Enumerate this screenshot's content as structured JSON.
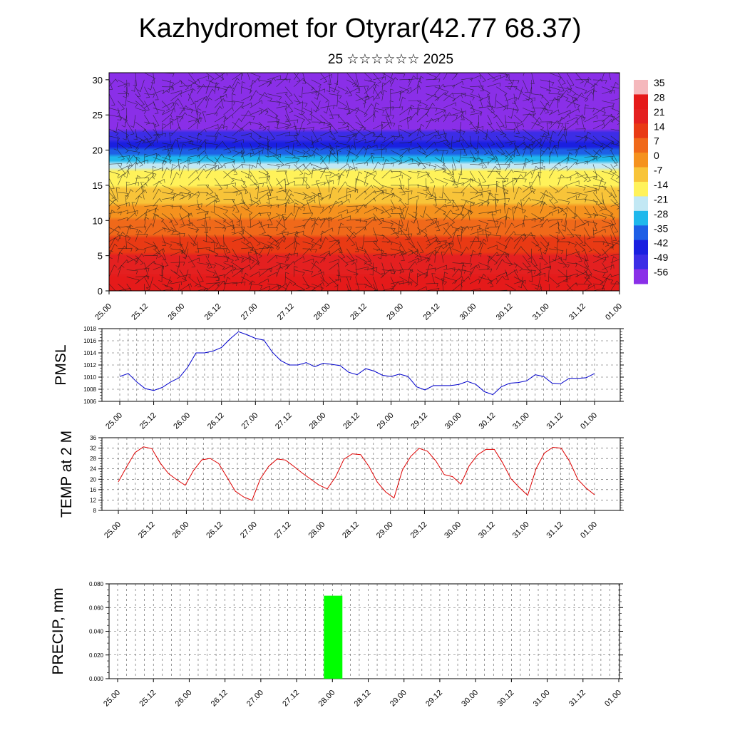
{
  "title": "Kazhydromet for Otyrar(42.77 68.37)",
  "subtitle": "25 ☆☆☆☆☆☆ 2025",
  "chart_data": [
    {
      "type": "heatmap",
      "name": "cross-section",
      "title": "",
      "xlabel": "",
      "ylabel": "",
      "x_tick_labels": [
        "25.00",
        "25.12",
        "26.00",
        "26.12",
        "27.00",
        "27.12",
        "28.00",
        "28.12",
        "29.00",
        "29.12",
        "30.00",
        "30.12",
        "31.00",
        "31.12",
        "01.00"
      ],
      "y_ticks": [
        0,
        5,
        10,
        15,
        20,
        25,
        30
      ],
      "ylim": [
        0,
        31
      ],
      "colorbar_labels": [
        "35",
        "28",
        "21",
        "14",
        "7",
        "0",
        "-7",
        "-14",
        "-21",
        "-28",
        "-35",
        "-42",
        "-49",
        "-56"
      ],
      "colorbar_levels": [
        35,
        28,
        21,
        14,
        7,
        0,
        -7,
        -14,
        -21,
        -28,
        -35,
        -42,
        -49,
        -56
      ],
      "colorbar_colors": [
        "#f5b8bc",
        "#e51a1a",
        "#e42020",
        "#e93a14",
        "#f0691a",
        "#f5921e",
        "#f8c439",
        "#fff25a",
        "#c2e8f4",
        "#1fb8ec",
        "#1e5fe6",
        "#1a1fe0",
        "#3c2de6",
        "#8a2fe8"
      ],
      "temperature_profile": [
        {
          "h": 0,
          "t": 32
        },
        {
          "h": 5,
          "t": 22
        },
        {
          "h": 10,
          "t": 7
        },
        {
          "h": 15,
          "t": -8
        },
        {
          "h": 17,
          "t": -14
        },
        {
          "h": 20,
          "t": -35
        },
        {
          "h": 24,
          "t": -56
        },
        {
          "h": 28,
          "t": -50
        },
        {
          "h": 31,
          "t": -60
        }
      ],
      "wind_barbs": true
    },
    {
      "type": "line",
      "name": "pmsl",
      "title": "",
      "xlabel": "",
      "ylabel": "PMSL",
      "ylim": [
        1006,
        1018
      ],
      "y_ticks": [
        1006,
        1008,
        1010,
        1012,
        1014,
        1016,
        1018
      ],
      "x_tick_labels": [
        "25.00",
        "25.12",
        "26.00",
        "26.12",
        "27.00",
        "27.12",
        "28.00",
        "28.12",
        "29.00",
        "29.12",
        "30.00",
        "30.12",
        "31.00",
        "31.12",
        "01.00"
      ],
      "series": [
        {
          "color": "#0000cc",
          "values": [
            1010.1,
            1010.6,
            1009.2,
            1008.1,
            1007.8,
            1008.3,
            1009.2,
            1009.9,
            1011.6,
            1014.0,
            1014.0,
            1014.3,
            1014.9,
            1016.3,
            1017.5,
            1017.0,
            1016.4,
            1016.1,
            1014.1,
            1012.7,
            1012.0,
            1012.0,
            1012.4,
            1011.7,
            1012.3,
            1012.1,
            1011.9,
            1010.8,
            1010.4,
            1011.4,
            1011.0,
            1010.3,
            1010.1,
            1010.5,
            1010.1,
            1008.4,
            1007.9,
            1008.6,
            1008.6,
            1008.6,
            1008.8,
            1009.3,
            1008.8,
            1007.6,
            1007.1,
            1008.4,
            1009.0,
            1009.1,
            1009.4,
            1010.4,
            1010.1,
            1009.0,
            1008.9,
            1009.8,
            1009.8,
            1009.9,
            1010.6
          ]
        }
      ]
    },
    {
      "type": "line",
      "name": "temp",
      "title": "",
      "xlabel": "",
      "ylabel": "TEMP at 2 M",
      "ylim": [
        8,
        36
      ],
      "y_ticks": [
        8,
        12,
        16,
        20,
        24,
        28,
        32,
        36
      ],
      "x_tick_labels": [
        "25.00",
        "25.12",
        "26.00",
        "26.12",
        "27.00",
        "27.12",
        "28.00",
        "28.12",
        "29.00",
        "29.12",
        "30.00",
        "30.12",
        "31.00",
        "31.12",
        "01.00"
      ],
      "series": [
        {
          "color": "#dd0000",
          "values": [
            19.0,
            24.8,
            30.3,
            32.5,
            31.8,
            26.3,
            22.2,
            19.8,
            17.7,
            23.4,
            27.5,
            28.0,
            26.1,
            20.8,
            15.4,
            13.2,
            11.9,
            20.2,
            25.0,
            27.8,
            27.4,
            25.0,
            22.4,
            20.1,
            17.8,
            16.3,
            20.9,
            27.7,
            29.8,
            29.5,
            24.9,
            18.9,
            15.1,
            12.8,
            23.6,
            28.8,
            31.9,
            30.8,
            27.1,
            21.8,
            21.0,
            18.1,
            25.2,
            29.4,
            31.5,
            31.5,
            26.3,
            20.2,
            16.8,
            13.8,
            24.1,
            30.1,
            32.3,
            32.0,
            27.0,
            19.9,
            16.6,
            14.0
          ]
        }
      ]
    },
    {
      "type": "bar",
      "name": "precip",
      "title": "",
      "xlabel": "",
      "ylabel": "PRECIP, mm",
      "ylim": [
        0,
        0.08
      ],
      "y_tick_labels": [
        "0.000",
        "0.020",
        "0.040",
        "0.060",
        "0.080"
      ],
      "y_ticks": [
        0,
        0.02,
        0.04,
        0.06,
        0.08
      ],
      "x_tick_labels": [
        "25.00",
        "25.12",
        "26.00",
        "26.12",
        "27.00",
        "27.12",
        "28.00",
        "28.12",
        "29.00",
        "29.12",
        "30.00",
        "30.12",
        "31.00",
        "31.12",
        "01.00"
      ],
      "bars": [
        {
          "x": 6.0,
          "value": 0.07,
          "color": "#00ff00"
        }
      ]
    }
  ]
}
